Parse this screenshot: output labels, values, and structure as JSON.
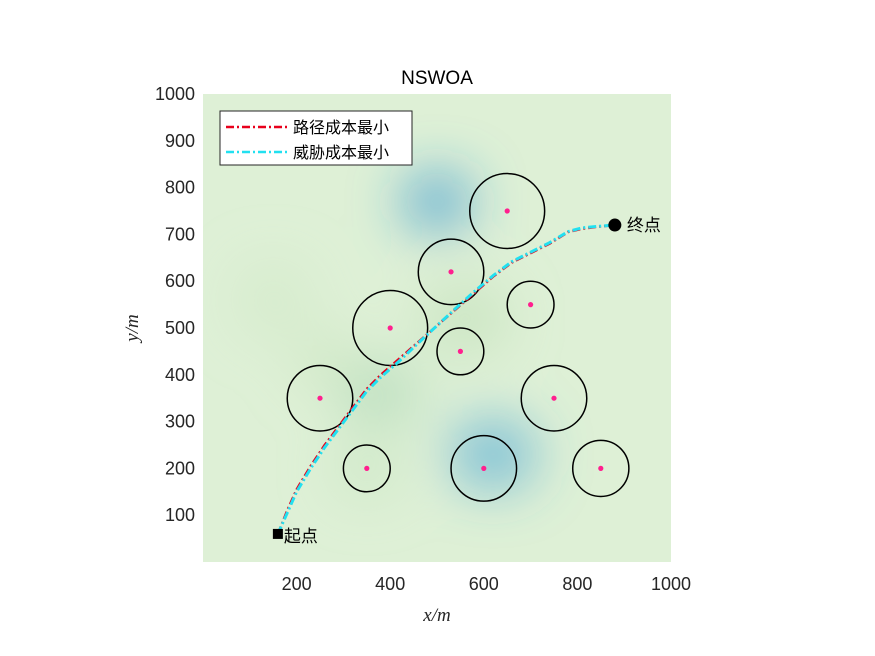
{
  "chart_data": {
    "type": "line",
    "title": "NSWOA",
    "xlabel": "x/m",
    "ylabel": "y/m",
    "xlim": [
      0,
      1000
    ],
    "ylim": [
      0,
      1000
    ],
    "xticks": [
      200,
      400,
      600,
      800,
      1000
    ],
    "yticks": [
      100,
      200,
      300,
      400,
      500,
      600,
      700,
      800,
      900,
      1000
    ],
    "grid": false,
    "legend_position": "top-left",
    "background": "threat-field heatmap (light green with blue low regions)",
    "threats": [
      {
        "x": 650,
        "y": 750,
        "r": 80
      },
      {
        "x": 530,
        "y": 620,
        "r": 70
      },
      {
        "x": 700,
        "y": 550,
        "r": 50
      },
      {
        "x": 400,
        "y": 500,
        "r": 80
      },
      {
        "x": 550,
        "y": 450,
        "r": 50
      },
      {
        "x": 250,
        "y": 350,
        "r": 70
      },
      {
        "x": 750,
        "y": 350,
        "r": 70
      },
      {
        "x": 350,
        "y": 200,
        "r": 50
      },
      {
        "x": 600,
        "y": 200,
        "r": 70
      },
      {
        "x": 850,
        "y": 200,
        "r": 60
      }
    ],
    "start": {
      "x": 160,
      "y": 60,
      "label": "起点"
    },
    "end": {
      "x": 880,
      "y": 720,
      "label": "终点"
    },
    "series": [
      {
        "name": "路径成本最小",
        "color": "#e8001c",
        "x": [
          160,
          180,
          200,
          230,
          260,
          290,
          320,
          350,
          380,
          420,
          460,
          500,
          540,
          580,
          620,
          660,
          700,
          740,
          780,
          810,
          840,
          880
        ],
        "y": [
          60,
          110,
          155,
          205,
          250,
          290,
          330,
          370,
          400,
          435,
          470,
          505,
          540,
          575,
          610,
          640,
          660,
          680,
          705,
          712,
          716,
          720
        ]
      },
      {
        "name": "威胁成本最小",
        "color": "#22e0f0",
        "x": [
          160,
          180,
          200,
          230,
          260,
          290,
          320,
          350,
          380,
          420,
          460,
          500,
          540,
          580,
          620,
          660,
          700,
          740,
          780,
          810,
          840,
          880
        ],
        "y": [
          60,
          105,
          150,
          200,
          245,
          285,
          325,
          365,
          395,
          430,
          468,
          505,
          542,
          578,
          612,
          642,
          662,
          682,
          706,
          714,
          717,
          720
        ]
      }
    ]
  }
}
